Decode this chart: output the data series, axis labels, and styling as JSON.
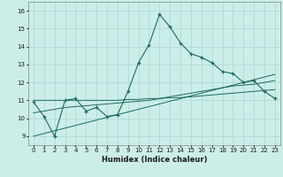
{
  "xlabel": "Humidex (Indice chaleur)",
  "ylabel": "",
  "background_color": "#cceee8",
  "line_color": "#1a6b5a",
  "grid_color": "#aad8d0",
  "x_values": [
    0,
    1,
    2,
    3,
    4,
    5,
    6,
    7,
    8,
    9,
    10,
    11,
    12,
    13,
    14,
    15,
    16,
    17,
    18,
    19,
    20,
    21,
    22,
    23
  ],
  "main_line": [
    10.9,
    10.1,
    9.0,
    11.0,
    11.1,
    10.4,
    10.6,
    10.1,
    10.2,
    11.5,
    13.1,
    14.1,
    15.8,
    15.1,
    14.2,
    13.6,
    13.4,
    13.1,
    12.6,
    12.5,
    12.0,
    12.1,
    11.5,
    11.1
  ],
  "trend_line1": [
    11.0,
    11.0,
    11.0,
    11.0,
    11.0,
    11.0,
    11.0,
    11.0,
    11.0,
    11.05,
    11.05,
    11.1,
    11.1,
    11.15,
    11.15,
    11.2,
    11.25,
    11.3,
    11.35,
    11.4,
    11.45,
    11.5,
    11.55,
    11.6
  ],
  "trend_line2": [
    9.0,
    9.15,
    9.3,
    9.45,
    9.6,
    9.75,
    9.9,
    10.05,
    10.2,
    10.35,
    10.5,
    10.65,
    10.8,
    10.95,
    11.1,
    11.25,
    11.4,
    11.55,
    11.7,
    11.85,
    12.0,
    12.15,
    12.3,
    12.45
  ],
  "trend_line3": [
    10.3,
    10.4,
    10.5,
    10.6,
    10.65,
    10.7,
    10.75,
    10.8,
    10.85,
    10.9,
    10.95,
    11.0,
    11.1,
    11.2,
    11.3,
    11.4,
    11.5,
    11.6,
    11.7,
    11.8,
    11.85,
    11.9,
    12.0,
    12.1
  ],
  "ylim": [
    8.5,
    16.5
  ],
  "xlim": [
    -0.5,
    23.5
  ],
  "yticks": [
    9,
    10,
    11,
    12,
    13,
    14,
    15,
    16
  ],
  "xticks": [
    0,
    1,
    2,
    3,
    4,
    5,
    6,
    7,
    8,
    9,
    10,
    11,
    12,
    13,
    14,
    15,
    16,
    17,
    18,
    19,
    20,
    21,
    22,
    23
  ]
}
